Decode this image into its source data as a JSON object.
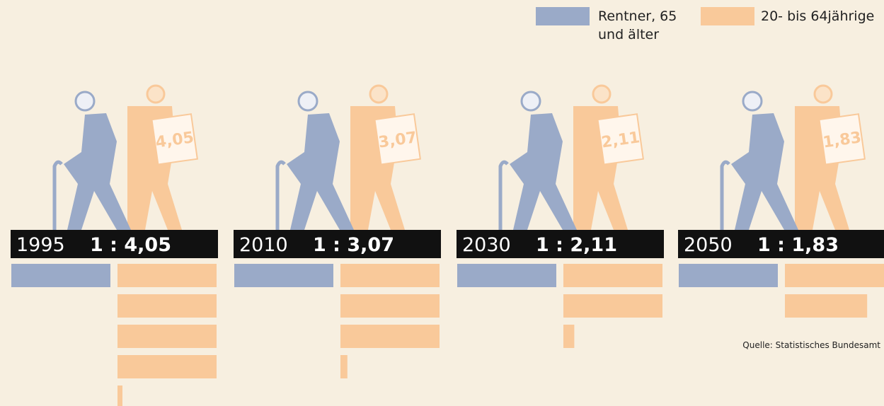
{
  "chart_data": {
    "type": "unit-bars",
    "categories": [
      "1995",
      "2010",
      "2030",
      "2050"
    ],
    "ratio_labels": [
      "1 : 4,05",
      "1 : 3,07",
      "1 : 2,11",
      "1 : 1,83"
    ],
    "series": [
      {
        "name": "Rentner, 65 und älter",
        "color": "#9aaac8",
        "values": [
          1,
          1,
          1,
          1
        ]
      },
      {
        "name": "20- bis 64jährige",
        "color": "#f9c99a",
        "values": [
          4.05,
          3.07,
          2.11,
          1.83
        ],
        "value_labels": [
          "4,05",
          "3,07",
          "2,11",
          "1,83"
        ]
      }
    ],
    "source": "Quelle: Statistisches Bundesamt"
  }
}
